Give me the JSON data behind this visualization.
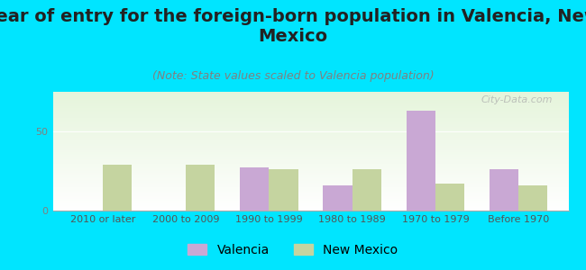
{
  "title": "Year of entry for the foreign-born population in Valencia, New\nMexico",
  "subtitle": "(Note: State values scaled to Valencia population)",
  "categories": [
    "2010 or later",
    "2000 to 2009",
    "1990 to 1999",
    "1980 to 1989",
    "1970 to 1979",
    "Before 1970"
  ],
  "valencia_values": [
    0,
    0,
    27,
    16,
    63,
    26
  ],
  "newmexico_values": [
    29,
    29,
    26,
    26,
    17,
    16
  ],
  "valencia_color": "#c9a8d4",
  "newmexico_color": "#c5d4a0",
  "background_outer": "#00e5ff",
  "bar_width": 0.35,
  "ylim": [
    0,
    75
  ],
  "yticks": [
    0,
    50
  ],
  "title_fontsize": 14,
  "subtitle_fontsize": 9,
  "tick_fontsize": 8,
  "legend_fontsize": 10,
  "watermark": "City-Data.com"
}
